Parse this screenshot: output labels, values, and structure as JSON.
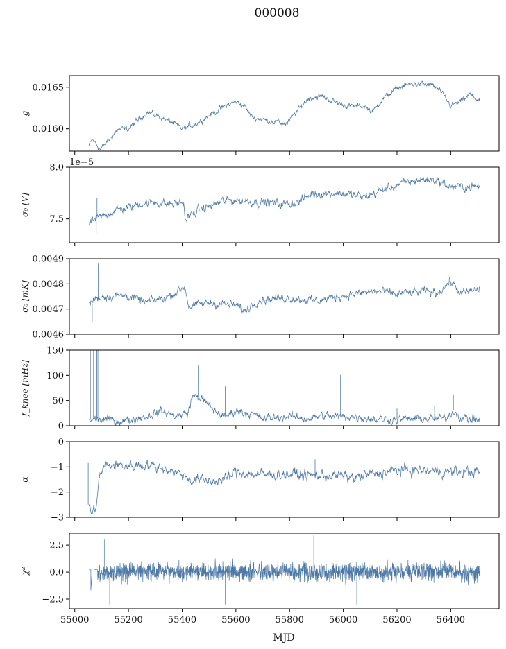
{
  "figure": {
    "title": "000008",
    "xlabel": "MJD"
  },
  "colors": {
    "series": "#4e79a7",
    "axis": "#000000",
    "background": "#ffffff"
  },
  "chart_data": [
    {
      "type": "line",
      "ylabel": "g",
      "xlim": [
        54980,
        56580
      ],
      "ylim": [
        0.01573,
        0.01664
      ],
      "xticks": [
        55000,
        55200,
        55400,
        55600,
        55800,
        56000,
        56200,
        56400
      ],
      "yticks": [
        0.016,
        0.0165
      ],
      "ytick_labels": [
        "0.0160",
        "0.0165"
      ],
      "offset_text": "",
      "show_x_tick_labels": false,
      "grid": false,
      "x_range": [
        55053,
        56508
      ],
      "trend": [
        [
          55053,
          0.01579
        ],
        [
          55065,
          0.01587
        ],
        [
          55080,
          0.01582
        ],
        [
          55095,
          0.01575
        ],
        [
          55120,
          0.01584
        ],
        [
          55160,
          0.01599
        ],
        [
          55200,
          0.016
        ],
        [
          55230,
          0.01609
        ],
        [
          55270,
          0.0162
        ],
        [
          55310,
          0.01615
        ],
        [
          55360,
          0.01608
        ],
        [
          55400,
          0.016
        ],
        [
          55450,
          0.01606
        ],
        [
          55500,
          0.01616
        ],
        [
          55560,
          0.01627
        ],
        [
          55600,
          0.01633
        ],
        [
          55630,
          0.01628
        ],
        [
          55660,
          0.01614
        ],
        [
          55720,
          0.0161
        ],
        [
          55790,
          0.01606
        ],
        [
          55820,
          0.01618
        ],
        [
          55870,
          0.01637
        ],
        [
          55920,
          0.01639
        ],
        [
          55970,
          0.01632
        ],
        [
          56020,
          0.01627
        ],
        [
          56080,
          0.01627
        ],
        [
          56110,
          0.0162
        ],
        [
          56140,
          0.01634
        ],
        [
          56200,
          0.01649
        ],
        [
          56260,
          0.01654
        ],
        [
          56330,
          0.01653
        ],
        [
          56360,
          0.01645
        ],
        [
          56400,
          0.01628
        ],
        [
          56430,
          0.01631
        ],
        [
          56470,
          0.01641
        ],
        [
          56508,
          0.01634
        ]
      ],
      "noise": 2.5e-05,
      "spikes": []
    },
    {
      "type": "line",
      "ylabel": "σ₀ [V]",
      "xlim": [
        54980,
        56580
      ],
      "ylim": [
        7.27,
        8.0
      ],
      "xticks": [
        55000,
        55200,
        55400,
        55600,
        55800,
        56000,
        56200,
        56400
      ],
      "yticks": [
        7.5,
        8.0
      ],
      "ytick_labels": [
        "7.5",
        "8.0"
      ],
      "offset_text": "1e−5",
      "show_x_tick_labels": false,
      "grid": false,
      "x_range": [
        55053,
        56508
      ],
      "trend": [
        [
          55053,
          7.46
        ],
        [
          55080,
          7.5
        ],
        [
          55100,
          7.52
        ],
        [
          55150,
          7.58
        ],
        [
          55200,
          7.61
        ],
        [
          55250,
          7.65
        ],
        [
          55300,
          7.66
        ],
        [
          55350,
          7.64
        ],
        [
          55405,
          7.66
        ],
        [
          55412,
          7.49
        ],
        [
          55450,
          7.57
        ],
        [
          55500,
          7.62
        ],
        [
          55550,
          7.67
        ],
        [
          55600,
          7.68
        ],
        [
          55700,
          7.66
        ],
        [
          55780,
          7.64
        ],
        [
          55840,
          7.67
        ],
        [
          55880,
          7.74
        ],
        [
          55960,
          7.75
        ],
        [
          56020,
          7.74
        ],
        [
          56080,
          7.71
        ],
        [
          56150,
          7.78
        ],
        [
          56220,
          7.84
        ],
        [
          56280,
          7.88
        ],
        [
          56340,
          7.88
        ],
        [
          56400,
          7.81
        ],
        [
          56460,
          7.81
        ],
        [
          56508,
          7.81
        ]
      ],
      "noise": 0.03,
      "spikes": [
        [
          55083,
          7.7
        ],
        [
          55080,
          7.36
        ]
      ]
    },
    {
      "type": "line",
      "ylabel": "σ₀ [mK]",
      "xlim": [
        54980,
        56580
      ],
      "ylim": [
        0.0046,
        0.0049
      ],
      "xticks": [
        55000,
        55200,
        55400,
        55600,
        55800,
        56000,
        56200,
        56400
      ],
      "yticks": [
        0.0046,
        0.0047,
        0.0048,
        0.0049
      ],
      "ytick_labels": [
        "0.0046",
        "0.0047",
        "0.0048",
        "0.0049"
      ],
      "offset_text": "",
      "show_x_tick_labels": false,
      "grid": false,
      "x_range": [
        55053,
        56508
      ],
      "trend": [
        [
          55053,
          0.00472
        ],
        [
          55075,
          0.00474
        ],
        [
          55100,
          0.00475
        ],
        [
          55200,
          0.004752
        ],
        [
          55260,
          0.004725
        ],
        [
          55300,
          0.004735
        ],
        [
          55360,
          0.004755
        ],
        [
          55410,
          0.00479
        ],
        [
          55425,
          0.00471
        ],
        [
          55500,
          0.004725
        ],
        [
          55600,
          0.004715
        ],
        [
          55630,
          0.00469
        ],
        [
          55680,
          0.004735
        ],
        [
          55780,
          0.004745
        ],
        [
          55830,
          0.00474
        ],
        [
          55900,
          0.004732
        ],
        [
          55980,
          0.00475
        ],
        [
          56040,
          0.00476
        ],
        [
          56120,
          0.00477
        ],
        [
          56200,
          0.00476
        ],
        [
          56300,
          0.00477
        ],
        [
          56350,
          0.004765
        ],
        [
          56400,
          0.00481
        ],
        [
          56440,
          0.00476
        ],
        [
          56508,
          0.00478
        ]
      ],
      "noise": 1.2e-05,
      "spikes": [
        [
          55087,
          0.00488
        ],
        [
          55065,
          0.00465
        ]
      ]
    },
    {
      "type": "line",
      "ylabel": "f_knee [mHz]",
      "xlim": [
        54980,
        56580
      ],
      "ylim": [
        0,
        150
      ],
      "xticks": [
        55000,
        55200,
        55400,
        55600,
        55800,
        56000,
        56200,
        56400
      ],
      "yticks": [
        0,
        50,
        100,
        150
      ],
      "ytick_labels": [
        "0",
        "50",
        "100",
        "150"
      ],
      "offset_text": "",
      "show_x_tick_labels": false,
      "grid": false,
      "x_range": [
        55053,
        56508
      ],
      "trend": [
        [
          55053,
          12
        ],
        [
          55100,
          12
        ],
        [
          55150,
          10
        ],
        [
          55200,
          10
        ],
        [
          55260,
          18
        ],
        [
          55320,
          28
        ],
        [
          55380,
          20
        ],
        [
          55420,
          25
        ],
        [
          55440,
          60
        ],
        [
          55470,
          55
        ],
        [
          55520,
          30
        ],
        [
          55560,
          18
        ],
        [
          55600,
          30
        ],
        [
          55650,
          25
        ],
        [
          55700,
          14
        ],
        [
          55800,
          18
        ],
        [
          55880,
          14
        ],
        [
          55920,
          20
        ],
        [
          55960,
          18
        ],
        [
          56040,
          18
        ],
        [
          56100,
          14
        ],
        [
          56200,
          12
        ],
        [
          56300,
          14
        ],
        [
          56380,
          14
        ],
        [
          56410,
          30
        ],
        [
          56440,
          15
        ],
        [
          56508,
          12
        ]
      ],
      "noise": 6,
      "spikes": [
        [
          55058,
          150
        ],
        [
          55070,
          150
        ],
        [
          55082,
          150
        ],
        [
          55086,
          150
        ],
        [
          55090,
          150
        ],
        [
          55460,
          120
        ],
        [
          55990,
          101
        ],
        [
          56200,
          34
        ],
        [
          56340,
          40
        ],
        [
          56410,
          62
        ],
        [
          55560,
          78
        ]
      ]
    },
    {
      "type": "line",
      "ylabel": "α",
      "xlim": [
        54980,
        56580
      ],
      "ylim": [
        -3,
        0
      ],
      "xticks": [
        55000,
        55200,
        55400,
        55600,
        55800,
        56000,
        56200,
        56400
      ],
      "yticks": [
        -3,
        -2,
        -1,
        0
      ],
      "ytick_labels": [
        "−3",
        "−2",
        "−1",
        "0"
      ],
      "offset_text": "",
      "show_x_tick_labels": false,
      "grid": false,
      "x_range": [
        55053,
        56508
      ],
      "trend": [
        [
          55053,
          -2.5
        ],
        [
          55065,
          -2.9
        ],
        [
          55080,
          -2.5
        ],
        [
          55090,
          -1.5
        ],
        [
          55110,
          -0.95
        ],
        [
          55200,
          -0.95
        ],
        [
          55260,
          -0.9
        ],
        [
          55330,
          -1.05
        ],
        [
          55400,
          -1.3
        ],
        [
          55430,
          -1.5
        ],
        [
          55500,
          -1.55
        ],
        [
          55560,
          -1.5
        ],
        [
          55600,
          -1.2
        ],
        [
          55660,
          -1.3
        ],
        [
          55760,
          -1.3
        ],
        [
          55820,
          -1.3
        ],
        [
          55900,
          -1.35
        ],
        [
          55990,
          -1.35
        ],
        [
          56040,
          -1.45
        ],
        [
          56100,
          -1.3
        ],
        [
          56200,
          -1.15
        ],
        [
          56300,
          -1.15
        ],
        [
          56400,
          -1.2
        ],
        [
          56508,
          -1.2
        ]
      ],
      "noise": 0.15,
      "spikes": [
        [
          55050,
          -0.85
        ],
        [
          55895,
          -0.7
        ]
      ]
    },
    {
      "type": "line",
      "ylabel": "χ²",
      "xlim": [
        54980,
        56580
      ],
      "ylim": [
        -3.4,
        3.6
      ],
      "xticks": [
        55000,
        55200,
        55400,
        55600,
        55800,
        56000,
        56200,
        56400
      ],
      "yticks": [
        -2.5,
        0.0,
        2.5
      ],
      "ytick_labels": [
        "−2.5",
        "0.0",
        "2.5"
      ],
      "offset_text": "",
      "show_x_tick_labels": true,
      "grid": false,
      "x_range": [
        55085,
        56508
      ],
      "lead_segment": [
        [
          55053,
          0.2
        ],
        [
          55060,
          0.2
        ],
        [
          55060,
          -1.7
        ],
        [
          55065,
          0.3
        ],
        [
          55085,
          0.2
        ]
      ],
      "trend": [
        [
          55085,
          0.0
        ],
        [
          56508,
          0.0
        ]
      ],
      "noise": 0.75,
      "spikes": [
        [
          55110,
          3.0
        ],
        [
          55890,
          3.4
        ],
        [
          55130,
          -3.0
        ],
        [
          55560,
          -3.0
        ],
        [
          56050,
          -3.0
        ]
      ]
    }
  ]
}
